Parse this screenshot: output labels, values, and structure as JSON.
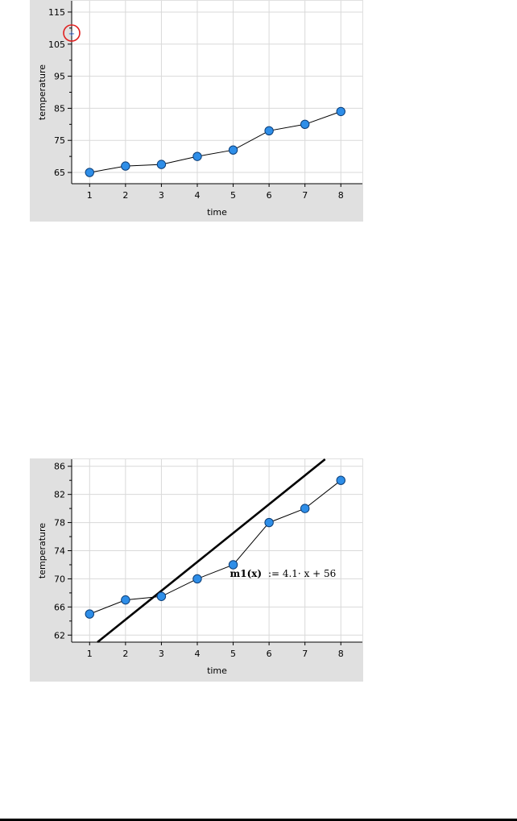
{
  "chart_data": [
    {
      "type": "line",
      "xlabel": "time",
      "ylabel": "temperature",
      "x": [
        1,
        2,
        3,
        4,
        5,
        6,
        7,
        8
      ],
      "series": [
        {
          "values": [
            65,
            67,
            67.5,
            70,
            72,
            78,
            80,
            84
          ]
        }
      ],
      "xlim": [
        0.5,
        8.6
      ],
      "ylim": [
        61.5,
        118.5
      ],
      "xticks": [
        "1",
        "2",
        "3",
        "4",
        "5",
        "6",
        "7",
        "8"
      ],
      "yticks": [
        "65",
        "75",
        "85",
        "95",
        "105",
        "115"
      ],
      "grid": true
    },
    {
      "type": "line",
      "xlabel": "time",
      "ylabel": "temperature",
      "x": [
        1,
        2,
        3,
        4,
        5,
        6,
        7,
        8
      ],
      "series": [
        {
          "values": [
            65,
            67,
            67.5,
            70,
            72,
            78,
            80,
            84
          ]
        }
      ],
      "fit_line": {
        "slope": 4.1,
        "intercept": 56,
        "label": ":= 4.1· x + 56",
        "name": "m1(x)"
      },
      "xlim": [
        0.5,
        8.6
      ],
      "ylim": [
        61,
        87
      ],
      "xticks": [
        "1",
        "2",
        "3",
        "4",
        "5",
        "6",
        "7",
        "8"
      ],
      "yticks": [
        "62",
        "66",
        "70",
        "74",
        "78",
        "82",
        "86"
      ],
      "grid": true
    }
  ],
  "colors": {
    "frame": "#e0e0e0",
    "point_fill": "#2e8ee8",
    "point_stroke": "#0b3d77",
    "cursor": "#e02020"
  },
  "cursor_glyph": "÷",
  "cursor_icon": "drag-axis-cursor-icon"
}
